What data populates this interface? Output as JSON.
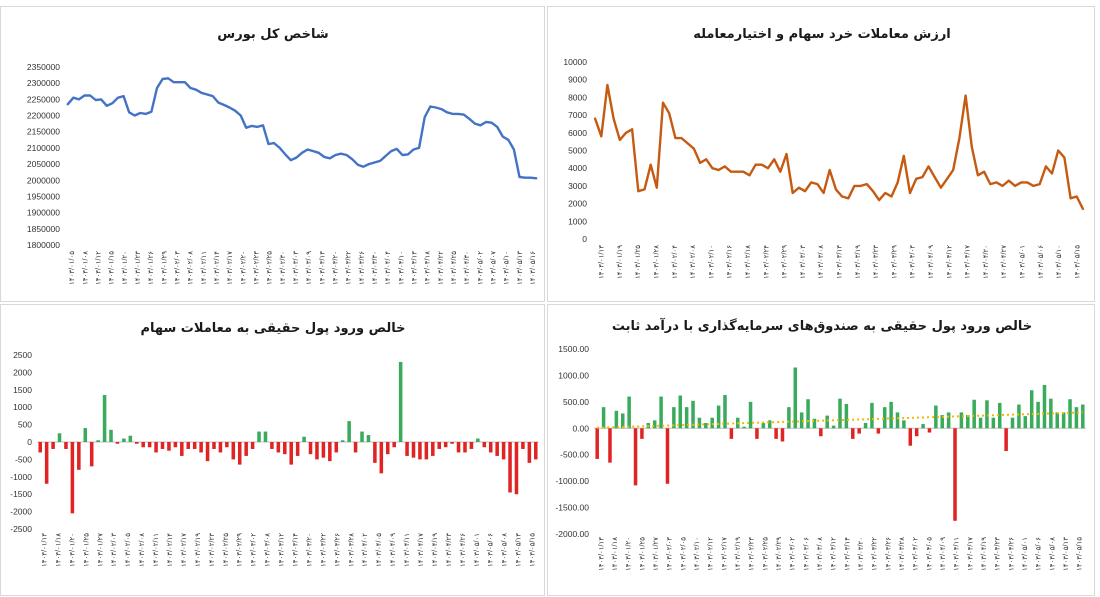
{
  "charts": [
    {
      "id": "index",
      "type": "line",
      "title": "شاخص کل بورس",
      "color": "#4472c4",
      "ylim": [
        1800000,
        2350000
      ],
      "yticks": [
        1800000,
        1850000,
        1900000,
        1950000,
        2000000,
        2050000,
        2100000,
        2150000,
        2200000,
        2250000,
        2300000,
        2350000
      ],
      "ytick_labels": [
        "1800000",
        "1850000",
        "1900000",
        "1950000",
        "2000000",
        "2050000",
        "2100000",
        "2150000",
        "2200000",
        "2250000",
        "2300000",
        "2350000"
      ],
      "xtick_labels": [
        "۱۴۰۳/۰۱/۰۵",
        "۱۴۰۳/۰۱/۰۸",
        "۱۴۰۳/۰۱/۱۲",
        "۱۴۰۳/۰۱/۱۵",
        "۱۴۰۳/۰۱/۲۰",
        "۱۴۰۳/۰۱/۲۳",
        "۱۴۰۳/۰۱/۲۶",
        "۱۴۰۳/۰۱/۲۹",
        "۱۴۰۳/۰۲/۰۳",
        "۱۴۰۳/۰۲/۰۸",
        "۱۴۰۳/۰۲/۱۱",
        "۱۴۰۳/۰۲/۱۴",
        "۱۴۰۳/۰۲/۱۷",
        "۱۴۰۳/۰۲/۲۰",
        "۱۴۰۳/۰۲/۲۳",
        "۱۴۰۳/۰۲/۲۵",
        "۱۴۰۳/۰۲/۳۰",
        "۱۴۰۳/۰۳/۰۳",
        "۱۴۰۳/۰۳/۰۹",
        "۱۴۰۳/۰۳/۱۳",
        "۱۴۰۳/۰۳/۲۰",
        "۱۴۰۳/۰۳/۲۲",
        "۱۴۰۳/۰۳/۲۶",
        "۱۴۰۳/۰۳/۳۰",
        "۱۴۰۳/۰۴/۰۴",
        "۱۴۰۳/۰۴/۱۰",
        "۱۴۰۳/۰۴/۱۳",
        "۱۴۰۳/۰۴/۱۸",
        "۱۴۰۳/۰۴/۲۲",
        "۱۴۰۳/۰۴/۲۵",
        "۱۴۰۳/۰۴/۳۰",
        "۱۴۰۳/۰۵/۰۲",
        "۱۴۰۳/۰۵/۰۷",
        "۱۴۰۳/۰۵/۱۰",
        "۱۴۰۳/۰۵/۱۳",
        "۱۴۰۳/۰۵/۱۶"
      ],
      "values": [
        2235000,
        2255000,
        2250000,
        2262000,
        2262000,
        2248000,
        2250000,
        2230000,
        2238000,
        2255000,
        2260000,
        2210000,
        2200000,
        2208000,
        2205000,
        2212000,
        2285000,
        2313000,
        2315000,
        2303000,
        2303000,
        2303000,
        2285000,
        2280000,
        2270000,
        2265000,
        2260000,
        2240000,
        2233000,
        2225000,
        2215000,
        2200000,
        2162000,
        2168000,
        2165000,
        2170000,
        2112000,
        2115000,
        2100000,
        2080000,
        2062000,
        2070000,
        2085000,
        2095000,
        2090000,
        2085000,
        2072000,
        2068000,
        2078000,
        2082000,
        2078000,
        2065000,
        2048000,
        2042000,
        2050000,
        2055000,
        2060000,
        2075000,
        2090000,
        2097000,
        2078000,
        2080000,
        2095000,
        2100000,
        2195000,
        2228000,
        2225000,
        2220000,
        2210000,
        2205000,
        2205000,
        2203000,
        2190000,
        2175000,
        2170000,
        2180000,
        2178000,
        2165000,
        2135000,
        2125000,
        2095000,
        2010000,
        2008000,
        2008000,
        2006000
      ]
    },
    {
      "id": "trade-value",
      "type": "line",
      "title": "ارزش معاملات خرد سهام و اختیارمعامله",
      "color": "#c55a11",
      "ylim": [
        0,
        10000
      ],
      "yticks": [
        0,
        1000,
        2000,
        3000,
        4000,
        5000,
        6000,
        7000,
        8000,
        9000,
        10000
      ],
      "ytick_labels": [
        "0",
        "1000",
        "2000",
        "3000",
        "4000",
        "5000",
        "6000",
        "7000",
        "8000",
        "9000",
        "10000"
      ],
      "xtick_labels": [
        "۱۴۰۳/۰۱/۱۳",
        "۱۴۰۳/۰۱/۱۹",
        "۱۴۰۳/۰۱/۲۵",
        "۱۴۰۳/۰۱/۲۸",
        "۱۴۰۳/۰۲/۰۴",
        "۱۴۰۳/۰۲/۰۸",
        "۱۴۰۳/۰۲/۱۰",
        "۱۴۰۳/۰۲/۱۶",
        "۱۴۰۳/۰۲/۱۸",
        "۱۴۰۳/۰۲/۲۴",
        "۱۴۰۳/۰۲/۲۹",
        "۱۴۰۳/۰۳/۰۳",
        "۱۴۰۳/۰۳/۰۸",
        "۱۴۰۳/۰۳/۱۳",
        "۱۴۰۳/۰۳/۱۹",
        "۱۴۰۳/۰۳/۲۳",
        "۱۴۰۳/۰۳/۲۹",
        "۱۴۰۳/۰۴/۰۳",
        "۱۴۰۳/۰۴/۰۹",
        "۱۴۰۳/۰۴/۱۲",
        "۱۴۰۳/۰۴/۱۷",
        "۱۴۰۳/۰۴/۲۰",
        "۱۴۰۳/۰۴/۲۷",
        "۱۴۰۳/۰۵/۰۱",
        "۱۴۰۳/۰۵/۰۶",
        "۱۴۰۳/۰۵/۱۰",
        "۱۴۰۳/۰۵/۱۵"
      ],
      "values": [
        6800,
        5800,
        8700,
        6800,
        5600,
        6000,
        6200,
        2700,
        2800,
        4200,
        2900,
        7700,
        7100,
        5700,
        5700,
        5400,
        5100,
        4300,
        4500,
        4000,
        3900,
        4100,
        3800,
        3800,
        3800,
        3600,
        4200,
        4200,
        4000,
        4500,
        3800,
        4800,
        2600,
        2900,
        2700,
        3200,
        3100,
        2600,
        3900,
        2800,
        2400,
        2300,
        3000,
        3000,
        3100,
        2700,
        2200,
        2600,
        2400,
        3200,
        4700,
        2600,
        3400,
        3500,
        4100,
        3500,
        2900,
        3400,
        3900,
        5700,
        8100,
        5200,
        3600,
        3800,
        3100,
        3200,
        3000,
        3300,
        3000,
        3200,
        3200,
        3000,
        3100,
        4100,
        3700,
        5000,
        4600,
        2300,
        2400,
        1700
      ]
    },
    {
      "id": "equity-flow",
      "type": "bar",
      "title": "خالص ورود پول حقیقی به معاملات سهام",
      "positive_color": "#3aab5c",
      "negative_color": "#e02424",
      "ylim": [
        -2500,
        2500
      ],
      "yticks": [
        -2500,
        -2000,
        -1500,
        -1000,
        -500,
        0,
        500,
        1000,
        1500,
        2000,
        2500
      ],
      "ytick_labels": [
        "-2500",
        "-2000",
        "-1500",
        "-1000",
        "-500",
        "0",
        "500",
        "1000",
        "1500",
        "2000",
        "2500"
      ],
      "xtick_labels": [
        "۱۴۰۳/۰۱/۱۳",
        "۱۴۰۳/۰۱/۱۸",
        "۱۴۰۳/۰۱/۲۰",
        "۱۴۰۳/۰۱/۲۵",
        "۱۴۰۳/۰۱/۲۷",
        "۱۴۰۳/۰۲/۰۳",
        "۱۴۰۳/۰۲/۰۵",
        "۱۴۰۳/۰۲/۰۸",
        "۱۴۰۳/۰۲/۱۱",
        "۱۴۰۳/۰۲/۱۴",
        "۱۴۰۳/۰۲/۱۷",
        "۱۴۰۳/۰۲/۱۹",
        "۱۴۰۳/۰۲/۲۳",
        "۱۴۰۳/۰۲/۲۵",
        "۱۴۰۳/۰۲/۲۹",
        "۱۴۰۳/۰۳/۰۲",
        "۱۴۰۳/۰۳/۰۸",
        "۱۴۰۳/۰۳/۱۲",
        "۱۴۰۳/۰۳/۱۴",
        "۱۴۰۳/۰۳/۲۰",
        "۱۴۰۳/۰۳/۲۲",
        "۱۴۰۳/۰۳/۲۶",
        "۱۴۰۳/۰۳/۲۸",
        "۱۴۰۳/۰۴/۰۲",
        "۱۴۰۳/۰۴/۰۵",
        "۱۴۰۳/۰۴/۰۹",
        "۱۴۰۳/۰۴/۱۱",
        "۱۴۰۳/۰۴/۱۷",
        "۱۴۰۳/۰۴/۱۹",
        "۱۴۰۳/۰۴/۲۳",
        "۱۴۰۳/۰۴/۲۶",
        "۱۴۰۳/۰۵/۰۱",
        "۱۴۰۳/۰۵/۰۶",
        "۱۴۰۳/۰۵/۰۸",
        "۱۴۰۳/۰۵/۱۳",
        "۱۴۰۳/۰۵/۱۵"
      ],
      "values": [
        -300,
        -1200,
        -200,
        250,
        -200,
        -2050,
        -800,
        400,
        -700,
        50,
        1350,
        350,
        -50,
        100,
        180,
        -50,
        -150,
        -150,
        -300,
        -200,
        -250,
        -150,
        -400,
        -200,
        -200,
        -300,
        -550,
        -200,
        -300,
        -150,
        -500,
        -650,
        -400,
        -200,
        300,
        300,
        -200,
        -300,
        -350,
        -650,
        -400,
        150,
        -350,
        -500,
        -450,
        -550,
        -300,
        50,
        600,
        -300,
        300,
        200,
        -600,
        -900,
        -350,
        -150,
        2300,
        -400,
        -450,
        -500,
        -500,
        -400,
        -200,
        -150,
        -50,
        -300,
        -300,
        -200,
        100,
        -150,
        -300,
        -400,
        -500,
        -1450,
        -1500,
        -200,
        -600,
        -500
      ]
    },
    {
      "id": "fixed-income-flow",
      "type": "bar",
      "title": "خالص ورود پول حقیقی به صندوق‌های سرمایه‌گذاری با درآمد ثابت",
      "positive_color": "#3aab5c",
      "negative_color": "#e02424",
      "trend_color": "#f5b800",
      "trend": [
        10,
        300
      ],
      "ylim": [
        -2000,
        1500
      ],
      "yticks": [
        -2000,
        -1500,
        -1000,
        -500,
        0,
        500,
        1000,
        1500
      ],
      "ytick_labels": [
        "-2000.00",
        "-1500.00",
        "-1000.00",
        "-500.00",
        "0.00",
        "500.00",
        "1000.00",
        "1500.00"
      ],
      "xtick_labels": [
        "۱۴۰۳/۰۱/۱۳",
        "۱۴۰۳/۰۱/۱۸",
        "۱۴۰۳/۰۱/۲۰",
        "۱۴۰۳/۰۱/۲۵",
        "۱۴۰۳/۰۱/۲۷",
        "۱۴۰۳/۰۲/۰۳",
        "۱۴۰۳/۰۲/۰۵",
        "۱۴۰۳/۰۲/۱۰",
        "۱۴۰۳/۰۲/۱۲",
        "۱۴۰۳/۰۲/۱۷",
        "۱۴۰۳/۰۲/۱۹",
        "۱۴۰۳/۰۲/۲۳",
        "۱۴۰۳/۰۲/۲۵",
        "۱۴۰۳/۰۲/۲۹",
        "۱۴۰۳/۰۳/۰۲",
        "۱۴۰۳/۰۳/۰۶",
        "۱۴۰۳/۰۳/۰۸",
        "۱۴۰۳/۰۳/۱۲",
        "۱۴۰۳/۰۳/۱۴",
        "۱۴۰۳/۰۳/۲۰",
        "۱۴۰۳/۰۳/۲۲",
        "۱۴۰۳/۰۳/۲۶",
        "۱۴۰۳/۰۳/۲۸",
        "۱۴۰۳/۰۴/۰۲",
        "۱۴۰۳/۰۴/۰۵",
        "۱۴۰۳/۰۴/۰۹",
        "۱۴۰۳/۰۴/۱۱",
        "۱۴۰۳/۰۴/۱۷",
        "۱۴۰۳/۰۴/۱۹",
        "۱۴۰۳/۰۴/۲۳",
        "۱۴۰۳/۰۴/۲۶",
        "۱۴۰۳/۰۵/۰۱",
        "۱۴۰۳/۰۵/۰۶",
        "۱۴۰۳/۰۵/۰۸",
        "۱۴۰۳/۰۵/۱۳",
        "۱۴۰۳/۰۵/۱۵"
      ],
      "values": [
        -580,
        400,
        -650,
        330,
        280,
        600,
        -1080,
        -200,
        100,
        150,
        600,
        -1050,
        400,
        620,
        400,
        520,
        200,
        100,
        200,
        430,
        630,
        -200,
        200,
        30,
        500,
        -200,
        100,
        150,
        -200,
        -250,
        400,
        1150,
        300,
        550,
        180,
        -150,
        240,
        50,
        560,
        460,
        -200,
        -100,
        100,
        480,
        -100,
        400,
        500,
        300,
        150,
        -330,
        -150,
        80,
        -80,
        430,
        250,
        300,
        -1750,
        300,
        250,
        540,
        200,
        530,
        200,
        480,
        -430,
        200,
        450,
        230,
        720,
        500,
        820,
        560,
        300,
        300,
        550,
        400,
        450
      ]
    }
  ]
}
